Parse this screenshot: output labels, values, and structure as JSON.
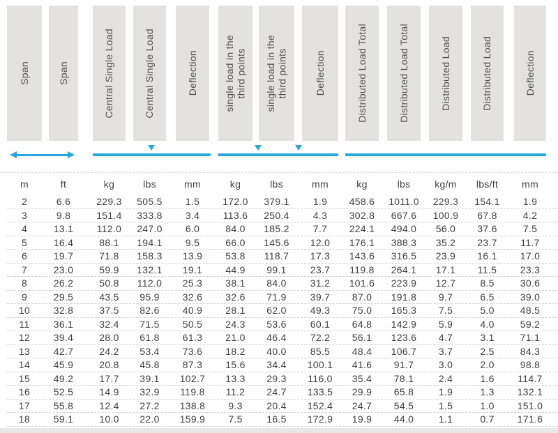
{
  "title": "Span load and deflection table",
  "colors": {
    "accent_blue": "#25a8e0",
    "header_bg": "#e3e2df",
    "header_text": "#515254",
    "data_text": "#404042"
  },
  "table": {
    "columns": [
      {
        "id": "span-m",
        "header": "Span",
        "unit": "m"
      },
      {
        "id": "span-ft",
        "header": "Span",
        "unit": "ft"
      },
      {
        "id": "central-kg",
        "header": "Central Single Load",
        "unit": "kg"
      },
      {
        "id": "central-lbs",
        "header": "Central Single Load",
        "unit": "lbs"
      },
      {
        "id": "central-defl",
        "header": "Deflection",
        "unit": "mm"
      },
      {
        "id": "third-kg",
        "header": "single load in the\nthird points",
        "unit": "kg"
      },
      {
        "id": "third-lbs",
        "header": "single load in the\nthird points",
        "unit": "lbs"
      },
      {
        "id": "third-defl",
        "header": "Deflection",
        "unit": "mm"
      },
      {
        "id": "dist-total-kg",
        "header": "Distributed Load Total",
        "unit": "kg"
      },
      {
        "id": "dist-total-lbs",
        "header": "Distributed Load Total",
        "unit": "lbs"
      },
      {
        "id": "dist-kg-m",
        "header": "Distributed Load",
        "unit": "kg/m"
      },
      {
        "id": "dist-lbs-ft",
        "header": "Distributed Load",
        "unit": "lbs/ft"
      },
      {
        "id": "dist-defl",
        "header": "Deflection",
        "unit": "mm"
      }
    ],
    "rows": [
      [
        "2",
        "6.6",
        "229.3",
        "505.5",
        "1.5",
        "172.0",
        "379.1",
        "1.9",
        "458.6",
        "1011.0",
        "229.3",
        "154.1",
        "1.9"
      ],
      [
        "3",
        "9.8",
        "151.4",
        "333.8",
        "3.4",
        "113.6",
        "250.4",
        "4.3",
        "302.8",
        "667.6",
        "100.9",
        "67.8",
        "4.2"
      ],
      [
        "4",
        "13.1",
        "112.0",
        "247.0",
        "6.0",
        "84.0",
        "185.2",
        "7.7",
        "224.1",
        "494.0",
        "56.0",
        "37.6",
        "7.5"
      ],
      [
        "5",
        "16.4",
        "88.1",
        "194.1",
        "9.5",
        "66.0",
        "145.6",
        "12.0",
        "176.1",
        "388.3",
        "35.2",
        "23.7",
        "11.7"
      ],
      [
        "6",
        "19.7",
        "71.8",
        "158.3",
        "13.9",
        "53.8",
        "118.7",
        "17.3",
        "143.6",
        "316.5",
        "23.9",
        "16.1",
        "17.0"
      ],
      [
        "7",
        "23.0",
        "59.9",
        "132.1",
        "19.1",
        "44.9",
        "99.1",
        "23.7",
        "119.8",
        "264.1",
        "17.1",
        "11.5",
        "23.3"
      ],
      [
        "8",
        "26.2",
        "50.8",
        "112.0",
        "25.3",
        "38.1",
        "84.0",
        "31.2",
        "101.6",
        "223.9",
        "12.7",
        "8.5",
        "30.6"
      ],
      [
        "9",
        "29.5",
        "43.5",
        "95.9",
        "32.6",
        "32.6",
        "71.9",
        "39.7",
        "87.0",
        "191.8",
        "9.7",
        "6.5",
        "39.0"
      ],
      [
        "10",
        "32.8",
        "37.5",
        "82.6",
        "40.9",
        "28.1",
        "62.0",
        "49.3",
        "75.0",
        "165.3",
        "7.5",
        "5.0",
        "48.5"
      ],
      [
        "11",
        "36.1",
        "32.4",
        "71.5",
        "50.5",
        "24.3",
        "53.6",
        "60.1",
        "64.8",
        "142.9",
        "5.9",
        "4.0",
        "59.2"
      ],
      [
        "12",
        "39.4",
        "28.0",
        "61.8",
        "61.3",
        "21.0",
        "46.4",
        "72.2",
        "56.1",
        "123.6",
        "4.7",
        "3.1",
        "71.1"
      ],
      [
        "13",
        "42.7",
        "24.2",
        "53.4",
        "73.6",
        "18.2",
        "40.0",
        "85.5",
        "48.4",
        "106.7",
        "3.7",
        "2.5",
        "84.3"
      ],
      [
        "14",
        "45.9",
        "20.8",
        "45.8",
        "87.3",
        "15.6",
        "34.4",
        "100.1",
        "41.6",
        "91.7",
        "3.0",
        "2.0",
        "98.8"
      ],
      [
        "15",
        "49.2",
        "17.7",
        "39.1",
        "102.7",
        "13.3",
        "29.3",
        "116.0",
        "35.4",
        "78.1",
        "2.4",
        "1.6",
        "114.7"
      ],
      [
        "16",
        "52.5",
        "14.9",
        "32.9",
        "119.8",
        "11.2",
        "24.7",
        "133.5",
        "29.9",
        "65.8",
        "1.9",
        "1.3",
        "132.1"
      ],
      [
        "17",
        "55.8",
        "12.4",
        "27.2",
        "138.8",
        "9.3",
        "20.4",
        "152.4",
        "24.7",
        "54.5",
        "1.5",
        "1.0",
        "151.0"
      ],
      [
        "18",
        "59.1",
        "10.0",
        "22.0",
        "159.9",
        "7.5",
        "16.5",
        "172.9",
        "19.9",
        "44.0",
        "1.1",
        "0.7",
        "171.6"
      ]
    ]
  },
  "groups": [
    {
      "name": "span",
      "marker": "double-arrow-icon"
    },
    {
      "name": "central-single-load",
      "marker": "line-with-one-triangle-icon"
    },
    {
      "name": "third-point-loads",
      "marker": "line-with-two-triangles-icon"
    },
    {
      "name": "distributed-load",
      "marker": "line-icon"
    }
  ]
}
